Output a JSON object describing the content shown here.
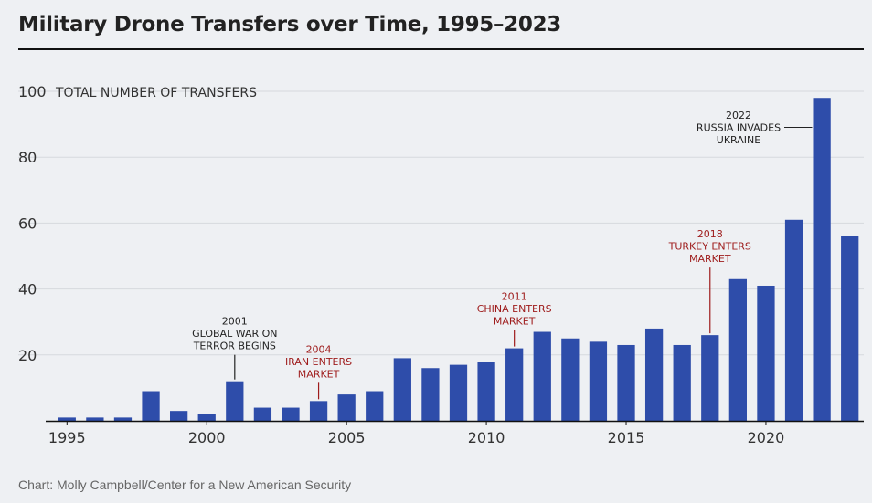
{
  "header": {
    "title": "Military Drone Transfers over Time, 1995–2023"
  },
  "footer": {
    "source": "Chart: Molly Campbell/Center for a New American Security"
  },
  "colors": {
    "bar": "#2e4daa",
    "annotation_red": "#9e1b1b",
    "annotation_dark": "#222222",
    "grid": "#d6d9de"
  },
  "chart_data": {
    "type": "bar",
    "title": "Military Drone Transfers over Time, 1995–2023",
    "ylabel": "TOTAL NUMBER OF TRANSFERS",
    "xlabel": "",
    "ylim": [
      0,
      100
    ],
    "yticks": [
      20,
      40,
      60,
      80,
      100
    ],
    "xticks": [
      1995,
      2000,
      2005,
      2010,
      2015,
      2020
    ],
    "grid": true,
    "x": [
      1995,
      1996,
      1997,
      1998,
      1999,
      2000,
      2001,
      2002,
      2003,
      2004,
      2005,
      2006,
      2007,
      2008,
      2009,
      2010,
      2011,
      2012,
      2013,
      2014,
      2015,
      2016,
      2017,
      2018,
      2019,
      2020,
      2021,
      2022,
      2023
    ],
    "values": [
      1,
      1,
      1,
      9,
      3,
      2,
      12,
      4,
      4,
      6,
      8,
      9,
      19,
      16,
      17,
      18,
      22,
      27,
      25,
      24,
      23,
      28,
      23,
      26,
      43,
      41,
      61,
      98,
      56
    ],
    "annotations": [
      {
        "year": 2001,
        "lines": [
          "2001",
          "GLOBAL WAR ON",
          "TERROR BEGINS"
        ],
        "color": "dark"
      },
      {
        "year": 2004,
        "lines": [
          "2004",
          "IRAN ENTERS",
          "MARKET"
        ],
        "color": "red"
      },
      {
        "year": 2011,
        "lines": [
          "2011",
          "CHINA ENTERS",
          "MARKET"
        ],
        "color": "red"
      },
      {
        "year": 2018,
        "lines": [
          "2018",
          "TURKEY ENTERS",
          "MARKET"
        ],
        "color": "red"
      },
      {
        "year": 2022,
        "lines": [
          "2022",
          "RUSSIA INVADES",
          "UKRAINE"
        ],
        "color": "dark"
      }
    ]
  }
}
